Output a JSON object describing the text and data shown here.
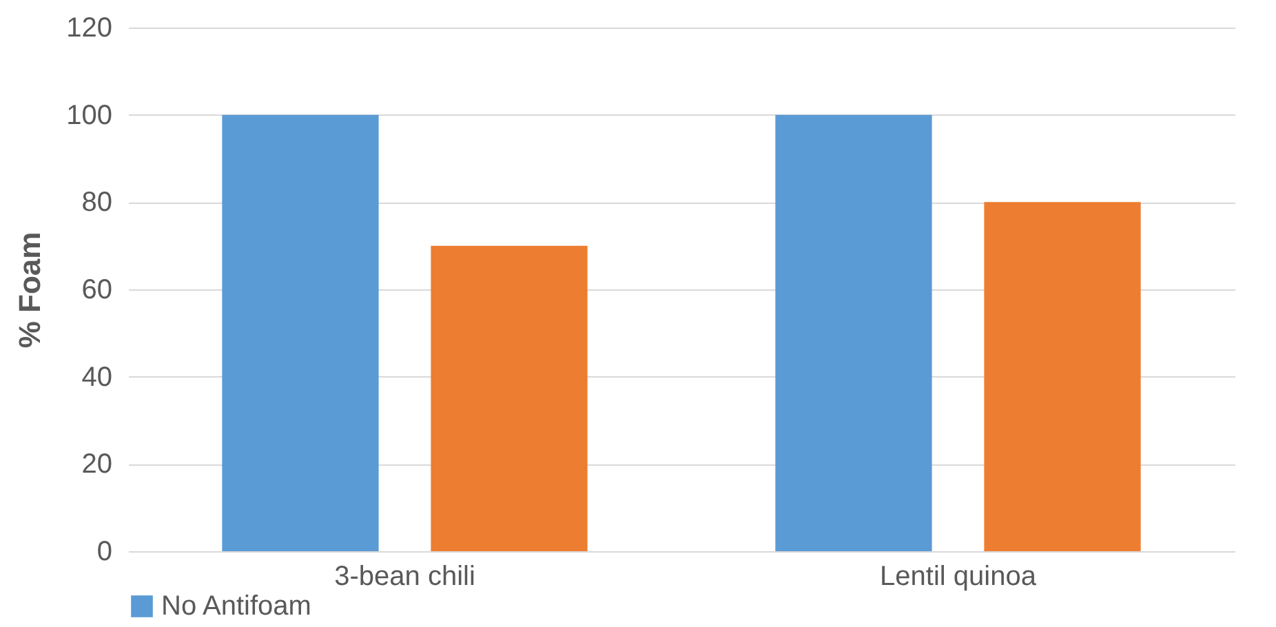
{
  "chart_data": {
    "type": "bar",
    "ylabel": "% Foam",
    "categories": [
      "3-bean chili",
      "Lentil quinoa"
    ],
    "series": [
      {
        "name": "No Antifoam",
        "color": "#5b9bd5",
        "values": [
          100,
          100
        ]
      },
      {
        "color": "#ed7d31",
        "values": [
          70,
          80
        ]
      }
    ],
    "ylim": [
      0,
      120
    ],
    "yticks": [
      0,
      20,
      40,
      60,
      80,
      100,
      120
    ],
    "grid": "y",
    "legend": "bottom"
  }
}
